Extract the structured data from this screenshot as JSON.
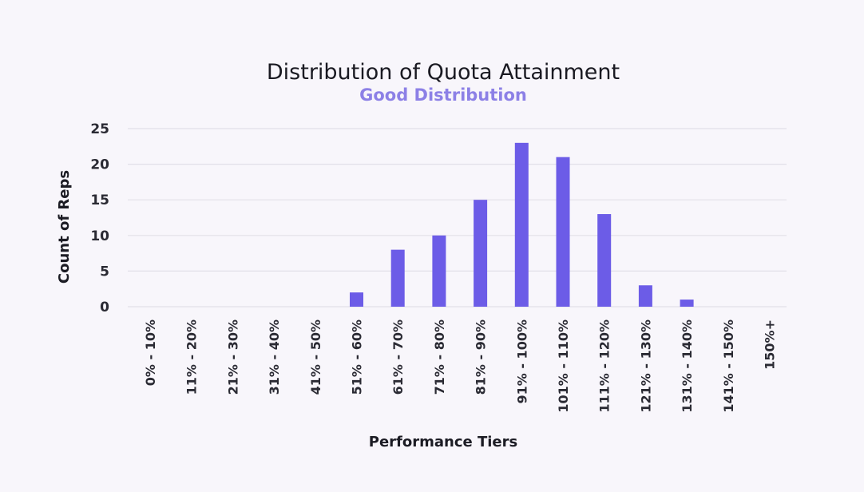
{
  "chart_data": {
    "type": "bar",
    "title": "Distribution of Quota Attainment",
    "subtitle": "Good Distribution",
    "xlabel": "Performance Tiers",
    "ylabel": "Count of Reps",
    "categories": [
      "0% - 10%",
      "11% - 20%",
      "21% - 30%",
      "31% - 40%",
      "41% - 50%",
      "51% - 60%",
      "61% - 70%",
      "71% - 80%",
      "81% - 90%",
      "91% - 100%",
      "101% - 110%",
      "111% - 120%",
      "121% - 130%",
      "131% - 140%",
      "141% - 150%",
      "150%+"
    ],
    "values": [
      0,
      0,
      0,
      0,
      0,
      2,
      8,
      10,
      15,
      23,
      21,
      13,
      3,
      1,
      0,
      0
    ],
    "ylim": [
      0,
      25
    ],
    "yticks": [
      0,
      5,
      10,
      15,
      20,
      25
    ],
    "grid": true,
    "legend": "none",
    "colors": {
      "bar": "#6c5ce7",
      "subtitle": "#8c80e6",
      "grid": "#e2e0e8"
    }
  }
}
